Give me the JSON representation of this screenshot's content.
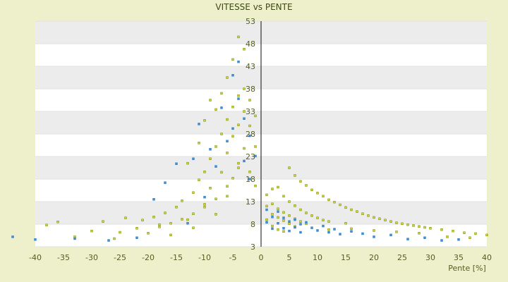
{
  "chart_data": {
    "type": "scatter",
    "title": "VITESSE vs PENTE",
    "xlabel": "Pente [%]",
    "ylabel": "",
    "xlim": [
      -40,
      40
    ],
    "ylim": [
      3,
      53
    ],
    "xticks": [
      -40,
      -35,
      -30,
      -25,
      -20,
      -15,
      -10,
      -5,
      0,
      5,
      10,
      15,
      20,
      25,
      30,
      35,
      40
    ],
    "yticks": [
      3,
      8,
      13,
      18,
      23,
      28,
      33,
      38,
      43,
      48,
      53
    ],
    "series": [
      {
        "name": "",
        "color": "#c8d22a",
        "points": [
          [
            -38,
            7.8
          ],
          [
            -36,
            8.5
          ],
          [
            -33,
            5.2
          ],
          [
            -30,
            6.5
          ],
          [
            -28,
            8.6
          ],
          [
            -26,
            4.8
          ],
          [
            -25,
            6.2
          ],
          [
            -24,
            9.4
          ],
          [
            -22,
            7.1
          ],
          [
            -21,
            8.9
          ],
          [
            -20,
            6.0
          ],
          [
            -19,
            9.6
          ],
          [
            -18,
            7.9
          ],
          [
            -17,
            10.5
          ],
          [
            -16,
            5.6
          ],
          [
            -15,
            11.8
          ],
          [
            -14,
            13.2
          ],
          [
            -13,
            9.0
          ],
          [
            -13,
            21.5
          ],
          [
            -12,
            15.0
          ],
          [
            -12,
            7.2
          ],
          [
            -11,
            17.8
          ],
          [
            -11,
            26.0
          ],
          [
            -10,
            19.6
          ],
          [
            -10,
            31.0
          ],
          [
            -10,
            12.4
          ],
          [
            -9,
            22.5
          ],
          [
            -9,
            35.5
          ],
          [
            -9,
            16.0
          ],
          [
            -8,
            25.2
          ],
          [
            -8,
            33.4
          ],
          [
            -8,
            10.2
          ],
          [
            -7,
            28.0
          ],
          [
            -7,
            37.0
          ],
          [
            -7,
            19.5
          ],
          [
            -6,
            31.2
          ],
          [
            -6,
            40.5
          ],
          [
            -6,
            23.8
          ],
          [
            -6,
            14.2
          ],
          [
            -5,
            34.0
          ],
          [
            -5,
            44.5
          ],
          [
            -5,
            27.5
          ],
          [
            -5,
            18.2
          ],
          [
            -4,
            36.5
          ],
          [
            -4,
            49.5
          ],
          [
            -4,
            30.0
          ],
          [
            -4,
            21.5
          ],
          [
            -3,
            38.0
          ],
          [
            -3,
            46.8
          ],
          [
            -3,
            33.0
          ],
          [
            -3,
            24.8
          ],
          [
            -2,
            35.5
          ],
          [
            -2,
            29.8
          ],
          [
            -2,
            19.6
          ],
          [
            -1,
            32.0
          ],
          [
            -1,
            25.2
          ],
          [
            -1,
            16.5
          ],
          [
            -18,
            7.4
          ],
          [
            -16,
            8.2
          ],
          [
            -14,
            9.1
          ],
          [
            -12,
            10.3
          ],
          [
            -10,
            11.8
          ],
          [
            -8,
            13.6
          ],
          [
            -6,
            16.4
          ],
          [
            -4,
            20.5
          ],
          [
            1,
            14.5
          ],
          [
            1,
            12.0
          ],
          [
            1,
            9.0
          ],
          [
            2,
            15.8
          ],
          [
            2,
            12.5
          ],
          [
            2,
            10.2
          ],
          [
            2,
            7.6
          ],
          [
            3,
            16.2
          ],
          [
            3,
            11.4
          ],
          [
            3,
            9.5
          ],
          [
            3,
            6.8
          ],
          [
            4,
            14.2
          ],
          [
            4,
            10.6
          ],
          [
            4,
            8.8
          ],
          [
            4,
            6.4
          ],
          [
            5,
            20.5
          ],
          [
            5,
            13.0
          ],
          [
            5,
            9.9
          ],
          [
            5,
            8.1
          ],
          [
            6,
            18.8
          ],
          [
            6,
            12.1
          ],
          [
            6,
            9.2
          ],
          [
            6,
            7.5
          ],
          [
            7,
            17.5
          ],
          [
            7,
            11.2
          ],
          [
            7,
            8.6
          ],
          [
            8,
            16.6
          ],
          [
            8,
            10.5
          ],
          [
            8,
            8.1
          ],
          [
            9,
            15.6
          ],
          [
            9,
            9.9
          ],
          [
            10,
            14.9
          ],
          [
            10,
            9.4
          ],
          [
            11,
            14.2
          ],
          [
            11,
            8.9
          ],
          [
            12,
            13.4
          ],
          [
            12,
            8.6
          ],
          [
            13,
            12.9
          ],
          [
            14,
            12.3
          ],
          [
            15,
            11.7
          ],
          [
            15,
            8.2
          ],
          [
            16,
            11.2
          ],
          [
            17,
            10.8
          ],
          [
            18,
            10.3
          ],
          [
            19,
            9.9
          ],
          [
            20,
            9.5
          ],
          [
            21,
            9.2
          ],
          [
            22,
            8.9
          ],
          [
            23,
            8.6
          ],
          [
            24,
            8.3
          ],
          [
            25,
            8.1
          ],
          [
            26,
            7.9
          ],
          [
            27,
            7.7
          ],
          [
            28,
            7.5
          ],
          [
            29,
            7.3
          ],
          [
            30,
            7.1
          ],
          [
            32,
            6.8
          ],
          [
            34,
            6.5
          ],
          [
            36,
            6.1
          ],
          [
            38,
            5.9
          ],
          [
            40,
            5.6
          ],
          [
            12,
            6.8
          ],
          [
            16,
            7.0
          ],
          [
            20,
            6.6
          ],
          [
            24,
            6.3
          ],
          [
            28,
            6.0
          ],
          [
            33,
            5.2
          ],
          [
            37,
            5.0
          ]
        ]
      },
      {
        "name": "",
        "color": "#3f8fd6",
        "points": [
          [
            -44,
            5.2
          ],
          [
            -40,
            4.6
          ],
          [
            -33,
            4.8
          ],
          [
            -27,
            4.4
          ],
          [
            -22,
            5.0
          ],
          [
            -19,
            13.5
          ],
          [
            -17,
            17.2
          ],
          [
            -15,
            21.4
          ],
          [
            -13,
            8.2
          ],
          [
            -12,
            22.5
          ],
          [
            -11,
            30.2
          ],
          [
            -10,
            14.0
          ],
          [
            -9,
            24.6
          ],
          [
            -8,
            20.8
          ],
          [
            -7,
            33.8
          ],
          [
            -6,
            26.4
          ],
          [
            -5,
            41.0
          ],
          [
            -5,
            29.2
          ],
          [
            -4,
            44.0
          ],
          [
            -4,
            35.8
          ],
          [
            -3,
            31.4
          ],
          [
            -3,
            22.0
          ],
          [
            -2,
            27.6
          ],
          [
            -2,
            18.0
          ],
          [
            -1,
            23.1
          ],
          [
            1,
            11.2
          ],
          [
            1,
            8.4
          ],
          [
            2,
            9.6
          ],
          [
            2,
            7.0
          ],
          [
            3,
            10.8
          ],
          [
            3,
            8.2
          ],
          [
            4,
            9.4
          ],
          [
            4,
            7.1
          ],
          [
            5,
            8.6
          ],
          [
            5,
            6.5
          ],
          [
            6,
            9.0
          ],
          [
            6,
            7.3
          ],
          [
            7,
            8.0
          ],
          [
            7,
            6.2
          ],
          [
            8,
            8.4
          ],
          [
            9,
            7.2
          ],
          [
            10,
            6.6
          ],
          [
            11,
            7.6
          ],
          [
            12,
            6.2
          ],
          [
            13,
            6.9
          ],
          [
            14,
            5.8
          ],
          [
            16,
            6.4
          ],
          [
            18,
            5.9
          ],
          [
            20,
            5.2
          ],
          [
            23,
            5.6
          ],
          [
            26,
            4.7
          ],
          [
            29,
            5.0
          ],
          [
            32,
            4.4
          ],
          [
            35,
            4.6
          ]
        ]
      }
    ]
  }
}
